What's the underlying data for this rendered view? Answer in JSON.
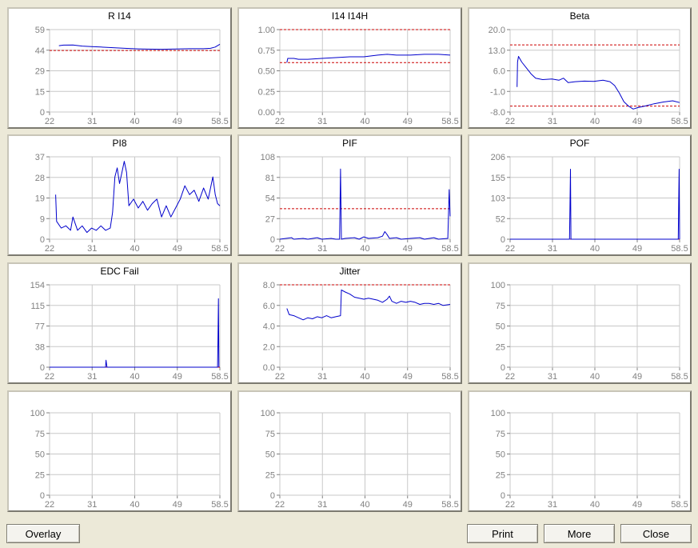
{
  "window": {
    "background": "#ece9d8"
  },
  "colors": {
    "series": "#0000cc",
    "threshold": "#cc0000",
    "grid": "#c8c8c8",
    "text": "#000000",
    "ticks": "#808080"
  },
  "buttons": {
    "overlay": "Overlay",
    "print": "Print",
    "more": "More",
    "close": "Close"
  },
  "chart_data": [
    {
      "type": "line",
      "title": "R I14",
      "x_ticks": [
        "22",
        "31",
        "40",
        "49",
        "58.5"
      ],
      "xlim": [
        22,
        58.5
      ],
      "y_ticks": [
        "0",
        "15",
        "29",
        "44",
        "59"
      ],
      "ylim": [
        0,
        59
      ],
      "thresholds": [
        44
      ],
      "series": [
        {
          "points": [
            [
              24,
              47.5
            ],
            [
              25,
              47.9
            ],
            [
              27,
              48.0
            ],
            [
              29,
              47.2
            ],
            [
              31,
              46.8
            ],
            [
              33,
              46.5
            ],
            [
              36,
              46.0
            ],
            [
              39,
              45.5
            ],
            [
              41,
              45.2
            ],
            [
              43,
              45.0
            ],
            [
              46,
              44.9
            ],
            [
              49,
              45.1
            ],
            [
              52,
              45.3
            ],
            [
              55,
              45.3
            ],
            [
              56.5,
              45.6
            ],
            [
              57.5,
              46.5
            ],
            [
              58.5,
              48.5
            ]
          ]
        }
      ]
    },
    {
      "type": "line",
      "title": "I14 I14H",
      "x_ticks": [
        "22",
        "31",
        "40",
        "49",
        "58.5"
      ],
      "xlim": [
        22,
        58.5
      ],
      "y_ticks": [
        "0.00",
        "0.25",
        "0.50",
        "0.75",
        "1.00"
      ],
      "ylim": [
        0,
        1
      ],
      "thresholds": [
        1.0,
        0.6
      ],
      "series": [
        {
          "points": [
            [
              23.5,
              0.6
            ],
            [
              23.7,
              0.65
            ],
            [
              25,
              0.65
            ],
            [
              26,
              0.64
            ],
            [
              28,
              0.64
            ],
            [
              31,
              0.65
            ],
            [
              34,
              0.66
            ],
            [
              37,
              0.67
            ],
            [
              40,
              0.67
            ],
            [
              43,
              0.69
            ],
            [
              45,
              0.7
            ],
            [
              47,
              0.69
            ],
            [
              50,
              0.69
            ],
            [
              53,
              0.7
            ],
            [
              56,
              0.7
            ],
            [
              58.5,
              0.69
            ]
          ]
        }
      ]
    },
    {
      "type": "line",
      "title": "Beta",
      "x_ticks": [
        "22",
        "31",
        "40",
        "49",
        "58.5"
      ],
      "xlim": [
        22,
        58.5
      ],
      "y_ticks": [
        "-8.0",
        "-1.0",
        "6.0",
        "13.0",
        "20.0"
      ],
      "ylim": [
        -8,
        20
      ],
      "thresholds": [
        14.8,
        -6.0
      ],
      "series": [
        {
          "points": [
            [
              23.5,
              0.5
            ],
            [
              23.6,
              9.0
            ],
            [
              23.8,
              10.9
            ],
            [
              24.5,
              9.0
            ],
            [
              25.5,
              7.0
            ],
            [
              26.5,
              5.0
            ],
            [
              27.5,
              3.5
            ],
            [
              29,
              3.0
            ],
            [
              31,
              3.2
            ],
            [
              32.5,
              2.8
            ],
            [
              33.5,
              3.5
            ],
            [
              34.5,
              2.0
            ],
            [
              36,
              2.3
            ],
            [
              38,
              2.5
            ],
            [
              40,
              2.4
            ],
            [
              42,
              2.8
            ],
            [
              43.5,
              2.3
            ],
            [
              44.5,
              1.0
            ],
            [
              45.5,
              -1.5
            ],
            [
              46.5,
              -4.5
            ],
            [
              47.5,
              -6.0
            ],
            [
              48.5,
              -7.0
            ],
            [
              49.5,
              -6.5
            ],
            [
              51,
              -6.0
            ],
            [
              53,
              -5.2
            ],
            [
              55,
              -4.6
            ],
            [
              57,
              -4.2
            ],
            [
              58.5,
              -4.8
            ]
          ]
        }
      ]
    },
    {
      "type": "line",
      "title": "PI8",
      "x_ticks": [
        "22",
        "31",
        "40",
        "49",
        "58.5"
      ],
      "xlim": [
        22,
        58.5
      ],
      "y_ticks": [
        "0",
        "9",
        "19",
        "28",
        "37"
      ],
      "ylim": [
        0,
        37
      ],
      "thresholds": [],
      "series": [
        {
          "points": [
            [
              23.3,
              20
            ],
            [
              23.5,
              8
            ],
            [
              24.5,
              5
            ],
            [
              25.5,
              6
            ],
            [
              26.5,
              4
            ],
            [
              27,
              10
            ],
            [
              28,
              4
            ],
            [
              29,
              6
            ],
            [
              30,
              3
            ],
            [
              31,
              5
            ],
            [
              32,
              4
            ],
            [
              33,
              6
            ],
            [
              34,
              4
            ],
            [
              35,
              5
            ],
            [
              35.5,
              12
            ],
            [
              36,
              28
            ],
            [
              36.5,
              32
            ],
            [
              37,
              25
            ],
            [
              37.5,
              30
            ],
            [
              38,
              35
            ],
            [
              38.5,
              30
            ],
            [
              39,
              15
            ],
            [
              40,
              18
            ],
            [
              41,
              14
            ],
            [
              42,
              17
            ],
            [
              43,
              13
            ],
            [
              44,
              16
            ],
            [
              45,
              18
            ],
            [
              46,
              10
            ],
            [
              47,
              15
            ],
            [
              48,
              10
            ],
            [
              49,
              14
            ],
            [
              50,
              18
            ],
            [
              51,
              24
            ],
            [
              52,
              20
            ],
            [
              53,
              22
            ],
            [
              54,
              17
            ],
            [
              55,
              23
            ],
            [
              56,
              18
            ],
            [
              57,
              28
            ],
            [
              57.5,
              20
            ],
            [
              58,
              16
            ],
            [
              58.5,
              15
            ]
          ]
        }
      ]
    },
    {
      "type": "line",
      "title": "PIF",
      "x_ticks": [
        "22",
        "31",
        "40",
        "49",
        "58.5"
      ],
      "xlim": [
        22,
        58.5
      ],
      "y_ticks": [
        "0",
        "27",
        "54",
        "81",
        "108"
      ],
      "ylim": [
        0,
        108
      ],
      "thresholds": [
        40
      ],
      "series": [
        {
          "points": [
            [
              22,
              0
            ],
            [
              24.5,
              2
            ],
            [
              25,
              0
            ],
            [
              27,
              1
            ],
            [
              28,
              0
            ],
            [
              30,
              2
            ],
            [
              31,
              0
            ],
            [
              33,
              1
            ],
            [
              34,
              0
            ],
            [
              34.8,
              0
            ],
            [
              35,
              92
            ],
            [
              35.2,
              0
            ],
            [
              36,
              1
            ],
            [
              38,
              2
            ],
            [
              39,
              0
            ],
            [
              40,
              3
            ],
            [
              41,
              1
            ],
            [
              43,
              2
            ],
            [
              44,
              4
            ],
            [
              44.5,
              10
            ],
            [
              45,
              6
            ],
            [
              45.5,
              1
            ],
            [
              47,
              2
            ],
            [
              48,
              0
            ],
            [
              50,
              1
            ],
            [
              52,
              2
            ],
            [
              53,
              0
            ],
            [
              55,
              2
            ],
            [
              56,
              0
            ],
            [
              58,
              1
            ],
            [
              58.3,
              65
            ],
            [
              58.5,
              30
            ]
          ]
        }
      ]
    },
    {
      "type": "line",
      "title": "POF",
      "x_ticks": [
        "22",
        "31",
        "40",
        "49",
        "58.5"
      ],
      "xlim": [
        22,
        58.5
      ],
      "y_ticks": [
        "0",
        "52",
        "103",
        "155",
        "206"
      ],
      "ylim": [
        0,
        206
      ],
      "thresholds": [
        0
      ],
      "series": [
        {
          "points": [
            [
              22,
              0
            ],
            [
              34.8,
              0
            ],
            [
              34.9,
              85
            ],
            [
              35.0,
              175
            ],
            [
              35.1,
              0
            ],
            [
              58.2,
              0
            ],
            [
              58.3,
              85
            ],
            [
              58.4,
              175
            ],
            [
              58.5,
              0
            ]
          ]
        }
      ]
    },
    {
      "type": "line",
      "title": "EDC Fail",
      "x_ticks": [
        "22",
        "31",
        "40",
        "49",
        "58.5"
      ],
      "xlim": [
        22,
        58.5
      ],
      "y_ticks": [
        "0",
        "38",
        "77",
        "115",
        "154"
      ],
      "ylim": [
        0,
        154
      ],
      "thresholds": [
        0
      ],
      "series": [
        {
          "points": [
            [
              22,
              0
            ],
            [
              34.0,
              0
            ],
            [
              34.1,
              13
            ],
            [
              34.3,
              0
            ],
            [
              58.0,
              0
            ],
            [
              58.1,
              60
            ],
            [
              58.2,
              128
            ],
            [
              58.3,
              0
            ]
          ]
        }
      ]
    },
    {
      "type": "line",
      "title": "Jitter",
      "x_ticks": [
        "22",
        "31",
        "40",
        "49",
        "58.5"
      ],
      "xlim": [
        22,
        58.5
      ],
      "y_ticks": [
        "0.0",
        "2.0",
        "4.0",
        "6.0",
        "8.0"
      ],
      "ylim": [
        0,
        8
      ],
      "thresholds": [
        8
      ],
      "series": [
        {
          "points": [
            [
              23.5,
              5.7
            ],
            [
              24,
              5.1
            ],
            [
              25,
              5.0
            ],
            [
              26,
              4.8
            ],
            [
              27,
              4.6
            ],
            [
              28,
              4.8
            ],
            [
              29,
              4.7
            ],
            [
              30,
              4.9
            ],
            [
              31,
              4.8
            ],
            [
              32,
              5.0
            ],
            [
              33,
              4.8
            ],
            [
              34,
              4.9
            ],
            [
              35,
              5.0
            ],
            [
              35.2,
              7.5
            ],
            [
              36,
              7.3
            ],
            [
              37,
              7.1
            ],
            [
              38,
              6.8
            ],
            [
              39,
              6.7
            ],
            [
              40,
              6.6
            ],
            [
              41,
              6.7
            ],
            [
              42,
              6.6
            ],
            [
              43,
              6.5
            ],
            [
              44,
              6.3
            ],
            [
              45,
              6.6
            ],
            [
              45.5,
              6.9
            ],
            [
              46,
              6.4
            ],
            [
              47,
              6.2
            ],
            [
              48,
              6.4
            ],
            [
              49,
              6.3
            ],
            [
              50,
              6.4
            ],
            [
              51,
              6.3
            ],
            [
              52,
              6.1
            ],
            [
              53,
              6.2
            ],
            [
              54,
              6.2
            ],
            [
              55,
              6.1
            ],
            [
              56,
              6.2
            ],
            [
              57,
              6.0
            ],
            [
              58.5,
              6.1
            ]
          ]
        }
      ]
    },
    {
      "type": "line",
      "title": "",
      "x_ticks": [
        "22",
        "31",
        "40",
        "49",
        "58.5"
      ],
      "xlim": [
        22,
        58.5
      ],
      "y_ticks": [
        "0",
        "25",
        "50",
        "75",
        "100"
      ],
      "ylim": [
        0,
        100
      ],
      "thresholds": [],
      "series": []
    },
    {
      "type": "line",
      "title": "",
      "x_ticks": [
        "22",
        "31",
        "40",
        "49",
        "58.5"
      ],
      "xlim": [
        22,
        58.5
      ],
      "y_ticks": [
        "0",
        "25",
        "50",
        "75",
        "100"
      ],
      "ylim": [
        0,
        100
      ],
      "thresholds": [],
      "series": []
    },
    {
      "type": "line",
      "title": "",
      "x_ticks": [
        "22",
        "31",
        "40",
        "49",
        "58.5"
      ],
      "xlim": [
        22,
        58.5
      ],
      "y_ticks": [
        "0",
        "25",
        "50",
        "75",
        "100"
      ],
      "ylim": [
        0,
        100
      ],
      "thresholds": [],
      "series": []
    },
    {
      "type": "line",
      "title": "",
      "x_ticks": [
        "22",
        "31",
        "40",
        "49",
        "58.5"
      ],
      "xlim": [
        22,
        58.5
      ],
      "y_ticks": [
        "0",
        "25",
        "50",
        "75",
        "100"
      ],
      "ylim": [
        0,
        100
      ],
      "thresholds": [],
      "series": []
    }
  ]
}
